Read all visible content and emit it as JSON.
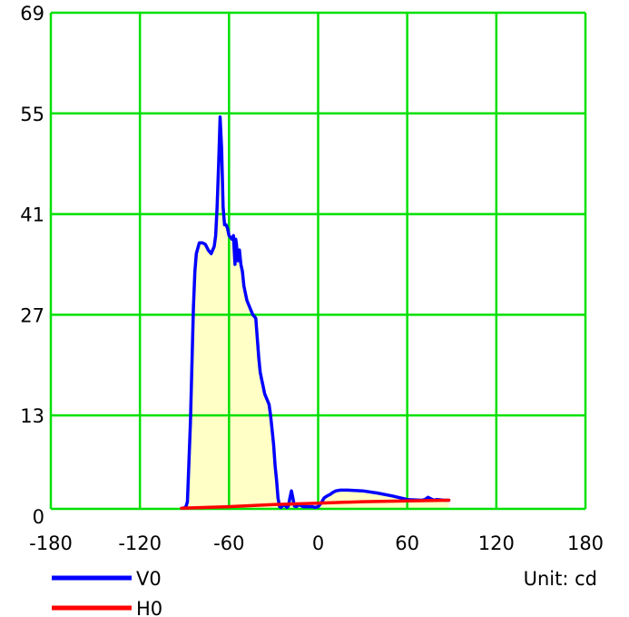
{
  "chart_data": {
    "type": "line",
    "xlim": [
      -180,
      180
    ],
    "ylim": [
      0,
      69
    ],
    "x_ticks": [
      "-180",
      "-120",
      "-60",
      "0",
      "60",
      "120",
      "180"
    ],
    "y_ticks": [
      "0",
      "13",
      "27",
      "41",
      "55",
      "69"
    ],
    "x_tick_values": [
      -180,
      -120,
      -60,
      0,
      60,
      120,
      180
    ],
    "y_tick_values": [
      0,
      13,
      27,
      41,
      55,
      69
    ],
    "grid": true,
    "grid_color": "#00e000",
    "fill_color": "#ffffc6",
    "unit_label": "Unit: cd",
    "legend_position": "bottom",
    "series": [
      {
        "name": "V0",
        "color": "#0000ff",
        "filled": true,
        "x": [
          -90,
          -89,
          -88,
          -86,
          -84,
          -83,
          -82,
          -80,
          -78,
          -76,
          -74,
          -72,
          -70,
          -69,
          -68,
          -67,
          -66,
          -65,
          -64,
          -63,
          -62,
          -61,
          -60,
          -58,
          -57,
          -56,
          -55.5,
          -55,
          -54,
          -53,
          -52,
          -51,
          -50,
          -48,
          -46,
          -44,
          -42,
          -40,
          -39,
          -38,
          -37,
          -36,
          -35,
          -34,
          -33,
          -32,
          -31,
          -30,
          -29,
          -28,
          -27,
          -26,
          -25,
          -24,
          -23,
          -22,
          -21,
          -20,
          -19,
          -18,
          -17,
          -16,
          -15,
          -14,
          -13,
          -12,
          -11,
          -10,
          -8,
          -6,
          -4,
          -2,
          0,
          2,
          4,
          6,
          8,
          10,
          12,
          15,
          20,
          30,
          40,
          50,
          60,
          70,
          72,
          74,
          76,
          78,
          80,
          85,
          88
        ],
        "y": [
          0.2,
          0.3,
          1.0,
          12,
          28,
          33,
          35.5,
          37,
          37,
          36.8,
          36.0,
          35.5,
          36.5,
          38,
          42,
          48,
          54.5,
          50,
          42,
          39.5,
          39.5,
          39,
          38,
          37.5,
          38,
          34,
          37.5,
          36.8,
          34.5,
          36,
          34,
          33,
          31,
          29,
          28,
          27,
          26.5,
          21,
          19,
          18,
          17,
          16,
          15.5,
          15,
          14.5,
          13,
          11,
          9,
          6,
          4,
          1.5,
          0.3,
          0.2,
          0.4,
          0.6,
          0.4,
          0.2,
          0.4,
          1.5,
          2.5,
          1.5,
          0.4,
          0.3,
          0.4,
          0.6,
          0.5,
          0.4,
          0.3,
          0.3,
          0.3,
          0.3,
          0.2,
          0.3,
          0.8,
          1.5,
          1.8,
          2.0,
          2.3,
          2.5,
          2.6,
          2.6,
          2.5,
          2.2,
          1.8,
          1.3,
          1.2,
          1.3,
          1.6,
          1.4,
          1.2,
          1.3,
          1.2,
          1.2
        ]
      },
      {
        "name": "H0",
        "color": "#ff0000",
        "filled": false,
        "x": [
          -92,
          -60,
          -30,
          0,
          30,
          60,
          88
        ],
        "y": [
          0.1,
          0.3,
          0.6,
          0.8,
          1.0,
          1.1,
          1.2
        ]
      }
    ]
  }
}
